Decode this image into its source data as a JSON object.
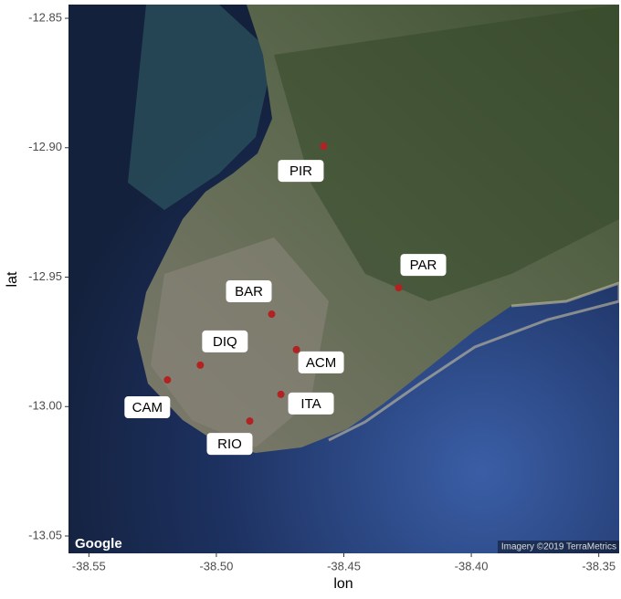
{
  "chart_data": {
    "type": "scatter",
    "x_label": "lon",
    "y_label": "lat",
    "attribution_left": "Google",
    "attribution_right": "Imagery ©2019 TerraMetrics",
    "color": "#b22222",
    "labels": [
      "PIR",
      "PAR",
      "BAR",
      "ACM",
      "DIQ",
      "ITA",
      "CAM",
      "RIO"
    ],
    "x": [
      -38.4579,
      -38.4285,
      -38.4783,
      -38.4686,
      -38.5063,
      -38.4747,
      -38.5192,
      -38.4869
    ],
    "y": [
      -12.8994,
      -12.9541,
      -12.9643,
      -12.978,
      -12.984,
      -12.9953,
      -12.9897,
      -13.0056
    ],
    "xlim": [
      -38.558,
      -38.342
    ],
    "ylim": [
      -13.0567,
      -12.8447
    ],
    "xticks": [
      -38.55,
      {
        "value": -38.5,
        "label": "-38.50"
      },
      -38.45,
      {
        "value": -38.4,
        "label": "-38.40"
      },
      -38.35
    ],
    "yticks": [
      {
        "value": -13.05,
        "label": "-13.05"
      },
      {
        "value": -13.0,
        "label": "-13.00"
      },
      -12.95,
      {
        "value": -12.9,
        "label": "-12.90"
      },
      -12.85
    ]
  }
}
